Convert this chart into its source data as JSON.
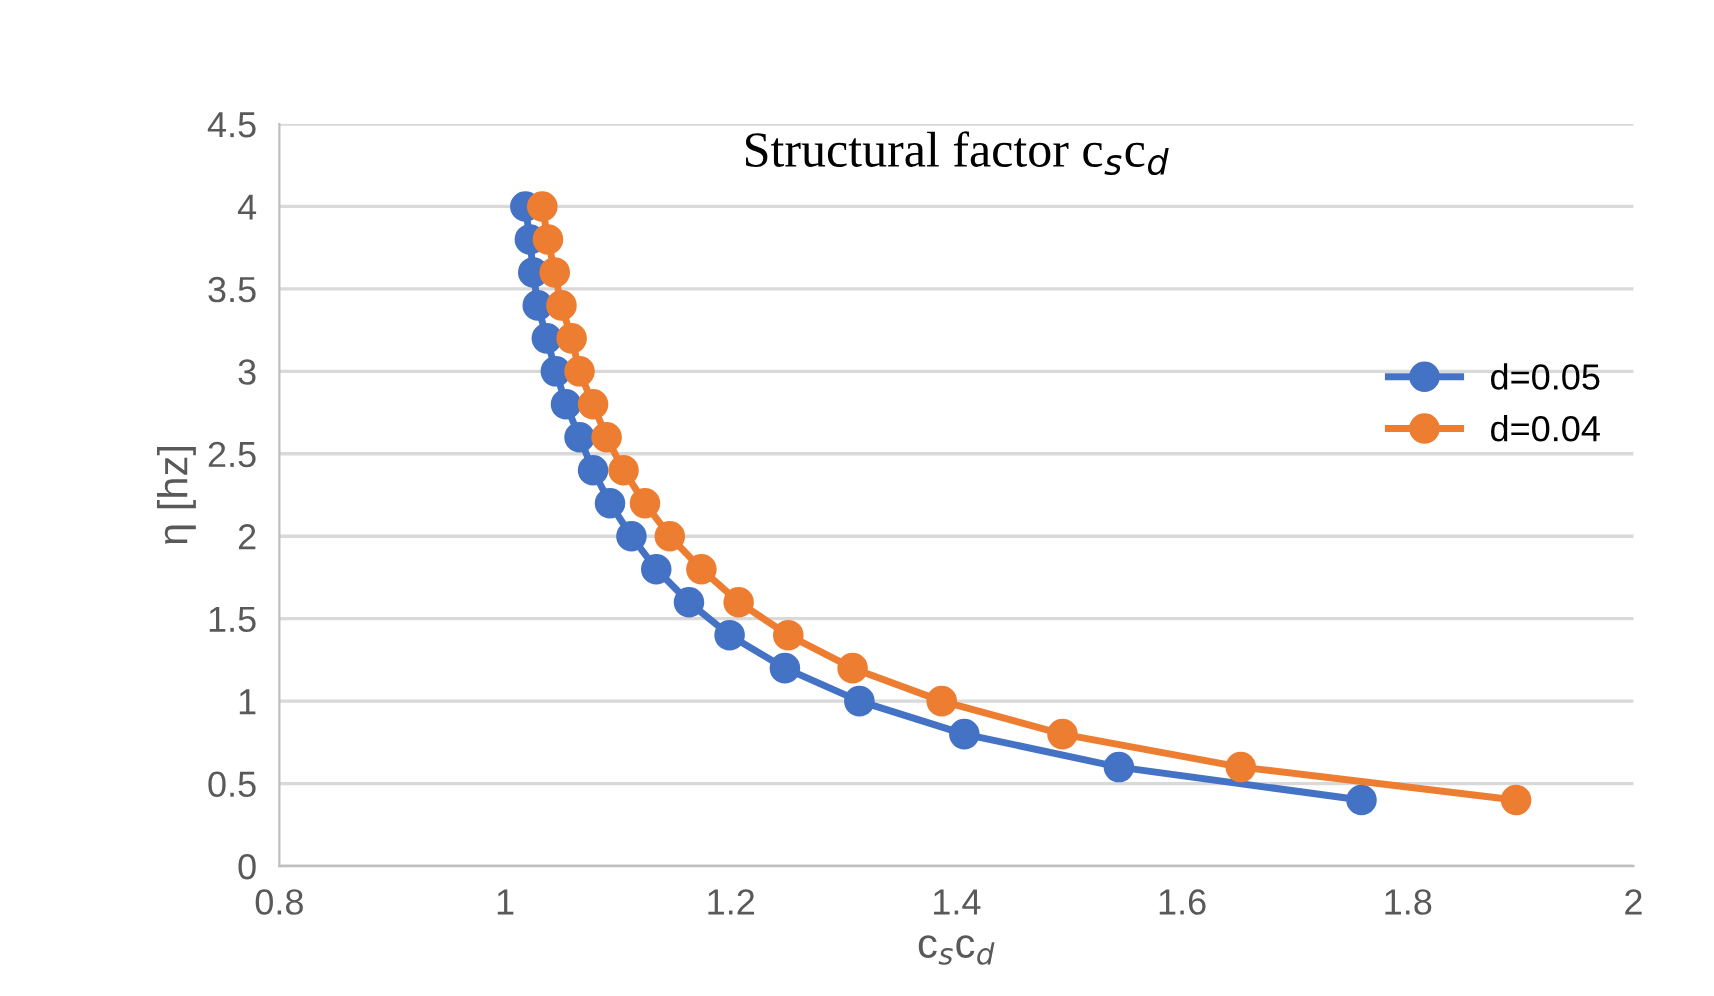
{
  "chart_data": {
    "type": "line",
    "title": "Structural factor c$_{s}$c$_{d}$",
    "xlabel": "c$_{s}$c$_{d}$",
    "ylabel": "η [hz]",
    "xlim": [
      0.8,
      2
    ],
    "xticks": [
      0.8,
      1,
      1.2,
      1.4,
      1.6,
      1.8,
      2
    ],
    "ylim": [
      0,
      4.5
    ],
    "yticks": [
      0,
      0.5,
      1,
      1.5,
      2,
      2.5,
      3,
      3.5,
      4,
      4.5
    ],
    "grid": "y",
    "legend": "right",
    "marker": "circle",
    "line_style": "solid",
    "series": [
      {
        "name": "d=0.05",
        "color": "#4472c4",
        "x": [
          1.018,
          1.022,
          1.025,
          1.029,
          1.037,
          1.045,
          1.054,
          1.066,
          1.078,
          1.093,
          1.112,
          1.134,
          1.163,
          1.199,
          1.248,
          1.314,
          1.407,
          1.544,
          1.759
        ],
        "values": [
          4,
          3.8,
          3.6,
          3.4,
          3.2,
          3,
          2.8,
          2.6,
          2.4,
          2.2,
          2,
          1.8,
          1.6,
          1.4,
          1.2,
          1,
          0.8,
          0.6,
          0.4
        ]
      },
      {
        "name": "d=0.04",
        "color": "#ed7d31",
        "x": [
          1.033,
          1.038,
          1.044,
          1.05,
          1.059,
          1.066,
          1.078,
          1.09,
          1.105,
          1.124,
          1.146,
          1.174,
          1.207,
          1.251,
          1.308,
          1.387,
          1.494,
          1.652,
          1.896
        ],
        "values": [
          4,
          3.8,
          3.6,
          3.4,
          3.2,
          3,
          2.8,
          2.6,
          2.4,
          2.2,
          2,
          1.8,
          1.6,
          1.4,
          1.2,
          1,
          0.8,
          0.6,
          0.4
        ]
      }
    ]
  }
}
